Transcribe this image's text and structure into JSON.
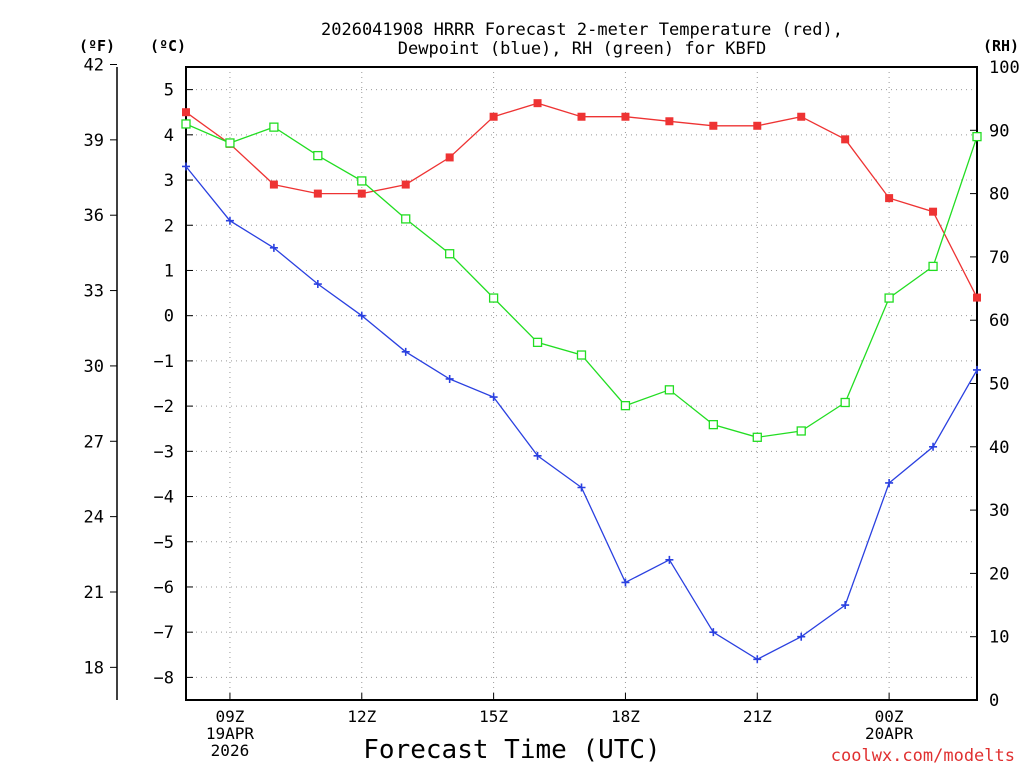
{
  "chart_data": {
    "type": "line",
    "title_line1": "2026041908 HRRR Forecast 2-meter Temperature (red),",
    "title_line2": "Dewpoint (blue), RH (green) for KBFD",
    "xlabel": "Forecast Time (UTC)",
    "credit": "coolwx.com/modelts",
    "left_f_unit": "(ºF)",
    "left_c_unit": "(ºC)",
    "right_unit": "(RH)",
    "x_hours": [
      8,
      9,
      10,
      11,
      12,
      13,
      14,
      15,
      16,
      17,
      18,
      19,
      20,
      21,
      22,
      23,
      24,
      25,
      26
    ],
    "x_ticks": [
      {
        "hour": 9,
        "lines": [
          "09Z",
          "19APR",
          "2026"
        ]
      },
      {
        "hour": 12,
        "lines": [
          "12Z"
        ]
      },
      {
        "hour": 15,
        "lines": [
          "15Z"
        ]
      },
      {
        "hour": 18,
        "lines": [
          "18Z"
        ]
      },
      {
        "hour": 21,
        "lines": [
          "21Z"
        ]
      },
      {
        "hour": 24,
        "lines": [
          "00Z",
          "20APR"
        ]
      }
    ],
    "celsius_axis": {
      "min": -8.5,
      "max": 5.5,
      "ticks": [
        5,
        4,
        3,
        2,
        1,
        0,
        -1,
        -2,
        -3,
        -4,
        -5,
        -6,
        -7,
        -8
      ]
    },
    "fahrenheit_axis": {
      "ticks": [
        42,
        39,
        36,
        33,
        30,
        27,
        24,
        21,
        18
      ]
    },
    "rh_axis": {
      "min": 0,
      "max": 100,
      "ticks": [
        100,
        90,
        80,
        70,
        60,
        50,
        40,
        30,
        20,
        10,
        0
      ]
    },
    "series": [
      {
        "name": "Temperature",
        "axis": "C",
        "color": "#ee3333",
        "marker": "filled-square",
        "values": [
          4.5,
          3.8,
          2.9,
          2.7,
          2.7,
          2.9,
          3.5,
          4.4,
          4.7,
          4.4,
          4.4,
          4.3,
          4.2,
          4.2,
          4.4,
          3.9,
          2.6,
          2.3,
          0.4
        ]
      },
      {
        "name": "Dewpoint",
        "axis": "C",
        "color": "#2a40e0",
        "marker": "plus",
        "values": [
          3.3,
          2.1,
          1.5,
          0.7,
          0.0,
          -0.8,
          -1.4,
          -1.8,
          -3.1,
          -3.8,
          -5.9,
          -5.4,
          -7.0,
          -7.6,
          -7.1,
          -6.4,
          -3.7,
          -2.9,
          -1.2
        ]
      },
      {
        "name": "RH",
        "axis": "RH",
        "color": "#22dd22",
        "marker": "open-square",
        "values": [
          91,
          88,
          90.5,
          86,
          82,
          76,
          70.5,
          63.5,
          56.5,
          54.5,
          46.5,
          49,
          43.5,
          41.5,
          42.5,
          47,
          63.5,
          68.5,
          89
        ]
      }
    ]
  }
}
